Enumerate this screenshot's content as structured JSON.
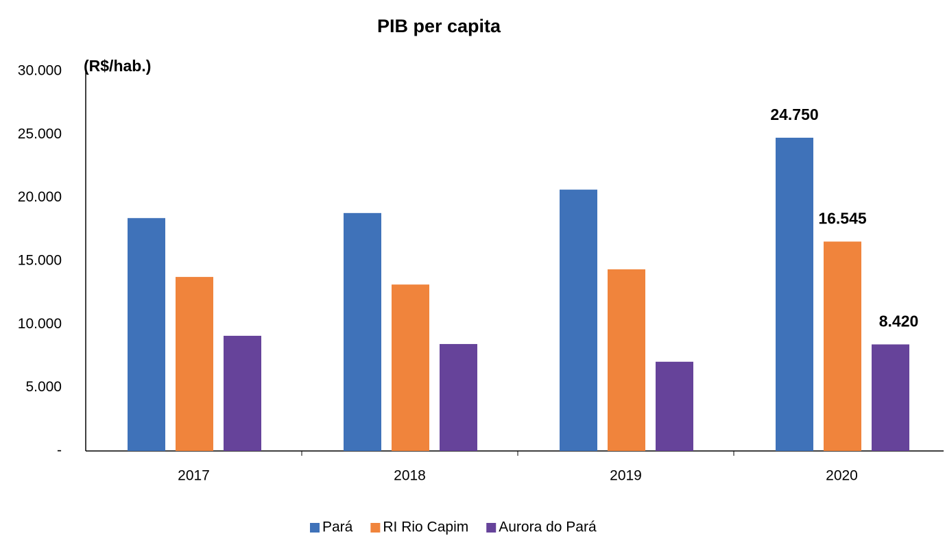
{
  "chart_data": {
    "type": "bar",
    "title": "PIB per capita",
    "y_label": "(R$/hab.)",
    "categories": [
      "2017",
      "2018",
      "2019",
      "2020"
    ],
    "series": [
      {
        "name": "Pará",
        "color": "#3f72b9",
        "values": [
          18400,
          18800,
          20650,
          24750
        ],
        "value_labels": [
          null,
          null,
          null,
          "24.750"
        ]
      },
      {
        "name": "RI Rio Capim",
        "color": "#f0843c",
        "values": [
          13750,
          13150,
          14350,
          16545
        ],
        "value_labels": [
          null,
          null,
          null,
          "16.545"
        ]
      },
      {
        "name": "Aurora do Pará",
        "color": "#66439a",
        "values": [
          9100,
          8450,
          7050,
          8420
        ],
        "value_labels": [
          null,
          null,
          null,
          "8.420"
        ]
      }
    ],
    "ylim": [
      0,
      30000
    ],
    "yticks": [
      {
        "value": 0,
        "label": "-"
      },
      {
        "value": 5000,
        "label": "5.000"
      },
      {
        "value": 10000,
        "label": "10.000"
      },
      {
        "value": 15000,
        "label": "15.000"
      },
      {
        "value": 20000,
        "label": "20.000"
      },
      {
        "value": 25000,
        "label": "25.000"
      },
      {
        "value": 30000,
        "label": "30.000"
      }
    ],
    "grid": false,
    "legend": "bottom"
  }
}
